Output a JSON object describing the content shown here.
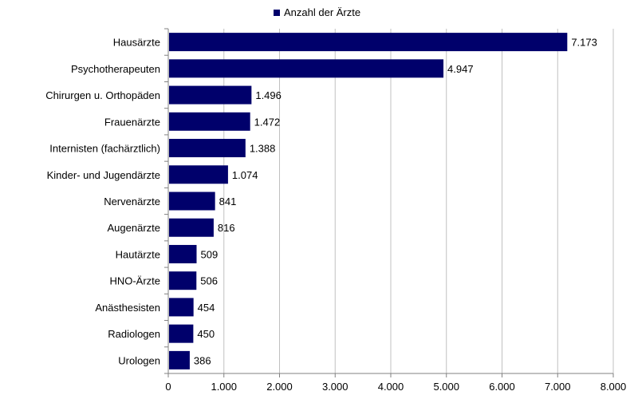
{
  "chart_data": {
    "type": "bar",
    "orientation": "horizontal",
    "categories": [
      "Hausärzte",
      "Psychotherapeuten",
      "Chirurgen u. Orthopäden",
      "Frauenärzte",
      "Internisten (fachärztlich)",
      "Kinder- und Jugendärzte",
      "Nervenärzte",
      "Augenärzte",
      "Hautärzte",
      "HNO-Ärzte",
      "Anästhesisten",
      "Radiologen",
      "Urologen"
    ],
    "series": [
      {
        "name": "Anzahl der Ärzte",
        "color": "#00006b",
        "values": [
          7173,
          4947,
          1496,
          1472,
          1388,
          1074,
          841,
          816,
          509,
          506,
          454,
          450,
          386
        ],
        "value_labels": [
          "7.173",
          "4.947",
          "1.496",
          "1.472",
          "1.388",
          "1.074",
          "841",
          "816",
          "509",
          "506",
          "454",
          "450",
          "386"
        ]
      }
    ],
    "xlim": [
      0,
      8000
    ],
    "xticks": [
      0,
      1000,
      2000,
      3000,
      4000,
      5000,
      6000,
      7000,
      8000
    ],
    "xtick_labels": [
      "0",
      "1.000",
      "2.000",
      "3.000",
      "4.000",
      "5.000",
      "6.000",
      "7.000",
      "8.000"
    ],
    "grid": "vertical",
    "legend": "top-center"
  }
}
